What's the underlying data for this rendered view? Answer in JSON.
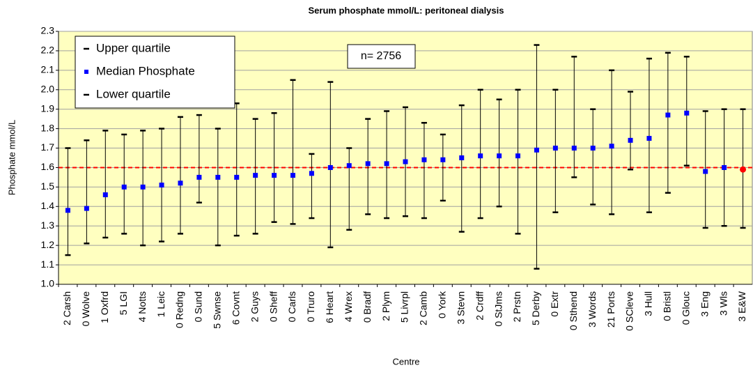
{
  "chart_data": {
    "type": "range",
    "title": "Serum phosphate mmol/L: peritoneal dialysis",
    "x_label": "Centre",
    "y_label": "Phosphate mmol/L",
    "annotation": "n= 2756",
    "categories": [
      "2 Carsh",
      "0 Wolve",
      "1 Oxfrd",
      "5 LGI",
      "4 Notts",
      "1 Leic",
      "0 Redng",
      "0 Sund",
      "5 Swnse",
      "6 Covnt",
      "2 Guys",
      "0 Sheff",
      "0 Carls",
      "0 Truro",
      "6 Heart",
      "4 Wrex",
      "0 Bradf",
      "2 Plym",
      "5 Livrpl",
      "2 Camb",
      "0 York",
      "3 Stevn",
      "2 Crdff",
      "0 StJms",
      "2 Prstn",
      "5 Derby",
      "0 Extr",
      "0 Sthend",
      "3 Words",
      "21 Ports",
      "0 SCleve",
      "3 Hull",
      "0 Bristl",
      "0 Glouc",
      "3 Eng",
      "3 Wls",
      "3 E&W"
    ],
    "series": [
      {
        "name": "Upper quartile",
        "color": "#000000",
        "values": [
          1.7,
          1.74,
          1.79,
          1.77,
          1.79,
          1.8,
          1.86,
          1.87,
          1.8,
          1.93,
          1.85,
          1.88,
          2.05,
          1.67,
          2.04,
          1.7,
          1.85,
          1.89,
          1.91,
          1.83,
          1.77,
          1.92,
          2.0,
          1.95,
          2.0,
          2.23,
          2.0,
          2.17,
          1.9,
          2.1,
          1.99,
          2.16,
          2.19,
          2.17,
          1.89,
          1.9,
          1.9
        ]
      },
      {
        "name": "Median Phosphate",
        "color": "#0000ff",
        "values": [
          1.38,
          1.39,
          1.46,
          1.5,
          1.5,
          1.51,
          1.52,
          1.55,
          1.55,
          1.55,
          1.56,
          1.56,
          1.56,
          1.57,
          1.6,
          1.61,
          1.62,
          1.62,
          1.63,
          1.64,
          1.64,
          1.65,
          1.66,
          1.66,
          1.66,
          1.69,
          1.7,
          1.7,
          1.7,
          1.71,
          1.74,
          1.75,
          1.87,
          1.88,
          1.58,
          1.6,
          1.59
        ],
        "colors": [
          "#0000ff",
          "#0000ff",
          "#0000ff",
          "#0000ff",
          "#0000ff",
          "#0000ff",
          "#0000ff",
          "#0000ff",
          "#0000ff",
          "#0000ff",
          "#0000ff",
          "#0000ff",
          "#0000ff",
          "#0000ff",
          "#0000ff",
          "#0000ff",
          "#0000ff",
          "#0000ff",
          "#0000ff",
          "#0000ff",
          "#0000ff",
          "#0000ff",
          "#0000ff",
          "#0000ff",
          "#0000ff",
          "#0000ff",
          "#0000ff",
          "#0000ff",
          "#0000ff",
          "#0000ff",
          "#0000ff",
          "#0000ff",
          "#0000ff",
          "#0000ff",
          "#0000ff",
          "#0000ff",
          "#ff0000"
        ]
      },
      {
        "name": "Lower quartile",
        "color": "#000000",
        "values": [
          1.15,
          1.21,
          1.24,
          1.26,
          1.2,
          1.22,
          1.26,
          1.42,
          1.2,
          1.25,
          1.26,
          1.32,
          1.31,
          1.34,
          1.19,
          1.28,
          1.36,
          1.34,
          1.35,
          1.34,
          1.43,
          1.27,
          1.34,
          1.4,
          1.26,
          1.08,
          1.37,
          1.55,
          1.41,
          1.36,
          1.59,
          1.37,
          1.47,
          1.61,
          1.29,
          1.3,
          1.29
        ]
      }
    ],
    "reference_line": {
      "value": 1.6,
      "color": "#ff0000"
    },
    "ylim": [
      1.0,
      2.3
    ],
    "yticks": [
      {
        "value": 1,
        "label": "1.0"
      },
      1.1,
      1.2,
      1.3,
      1.4,
      1.5,
      1.6,
      1.7,
      1.8,
      1.9,
      {
        "value": 2,
        "label": "2.0"
      },
      2.1,
      2.2,
      2.3
    ],
    "grid": true,
    "background": "#ffffc0"
  }
}
